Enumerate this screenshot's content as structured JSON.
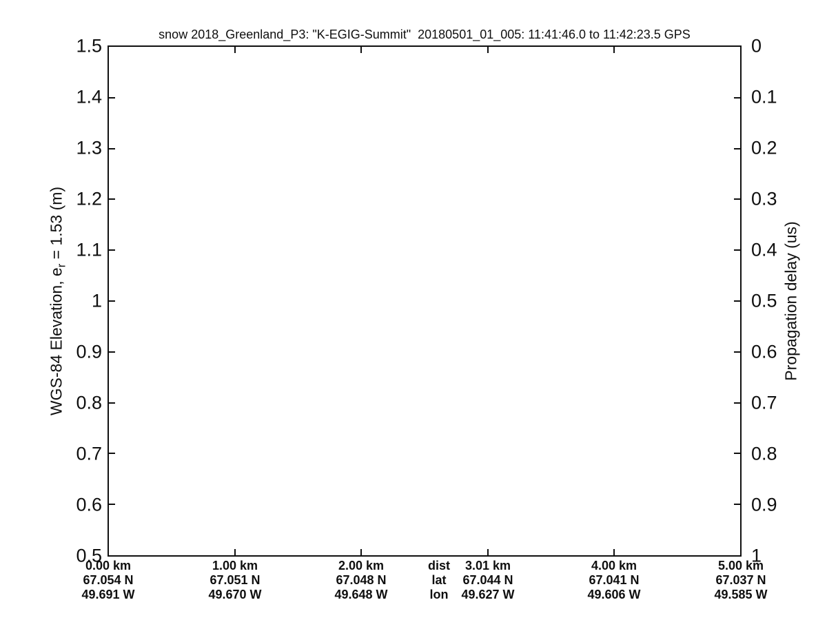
{
  "title": "snow 2018_Greenland_P3: \"K-EGIG-Summit\"  20180501_01_005: 11:41:46.0 to 11:42:23.5 GPS",
  "left_axis": {
    "label_prefix": "WGS-84 Elevation, e",
    "label_sub": "r",
    "label_suffix": " = 1.53 (m)",
    "ticks": [
      "1.5",
      "1.4",
      "1.3",
      "1.2",
      "1.1",
      "1",
      "0.9",
      "0.8",
      "0.7",
      "0.6",
      "0.5"
    ]
  },
  "right_axis": {
    "label": "Propagation delay (us)",
    "ticks": [
      "0",
      "0.1",
      "0.2",
      "0.3",
      "0.4",
      "0.5",
      "0.6",
      "0.7",
      "0.8",
      "0.9",
      "1"
    ]
  },
  "x_axis": {
    "rows": [
      {
        "key": "dist",
        "values": [
          "0.00 km",
          "1.00 km",
          "2.00 km",
          "3.01 km",
          "4.00 km",
          "5.00 km"
        ]
      },
      {
        "key": "lat",
        "values": [
          "67.054 N",
          "67.051 N",
          "67.048 N",
          "67.044 N",
          "67.041 N",
          "67.037 N"
        ]
      },
      {
        "key": "lon",
        "values": [
          "49.691 W",
          "49.670 W",
          "49.648 W",
          "49.627 W",
          "49.606 W",
          "49.585 W"
        ]
      }
    ]
  },
  "colors": {
    "foreground": "#0f0f0f",
    "background": "#ffffff"
  },
  "chart_data": {
    "type": "line",
    "title": "snow 2018_Greenland_P3: \"K-EGIG-Summit\"  20180501_01_005: 11:41:46.0 to 11:42:23.5 GPS",
    "left_ylabel": "WGS-84 Elevation, e_r = 1.53 (m)",
    "right_ylabel": "Propagation delay (us)",
    "left_ylim": [
      0.5,
      1.5
    ],
    "right_ylim": [
      0,
      1
    ],
    "right_axis_reversed": true,
    "x_tick_dist_km": [
      0.0,
      1.0,
      2.0,
      3.01,
      4.0,
      5.0
    ],
    "x_tick_lat_deg_N": [
      67.054,
      67.051,
      67.048,
      67.044,
      67.041,
      67.037
    ],
    "x_tick_lon_deg_W": [
      49.691,
      49.67,
      49.648,
      49.627,
      49.606,
      49.585
    ],
    "x_row_keys": [
      "dist",
      "lat",
      "lon"
    ],
    "series": [],
    "grid": false,
    "legend": null,
    "note": "empty axes - no data trace plotted"
  }
}
